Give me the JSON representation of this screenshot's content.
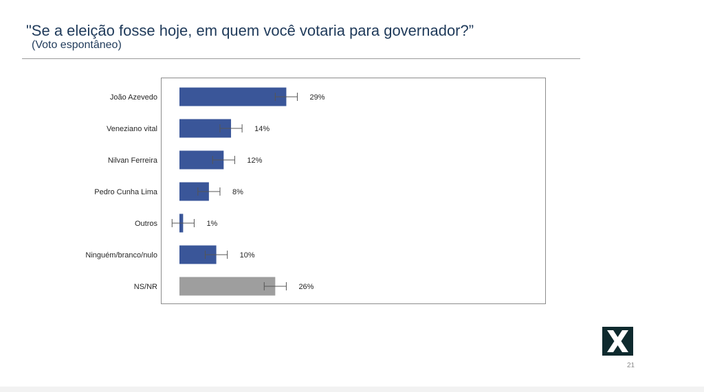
{
  "slide": {
    "title": "\"Se a eleição fosse hoje, em quem você votaria para governador?”",
    "subtitle": "(Voto espontâneo)",
    "page_number": "21"
  },
  "colors": {
    "bar_primary": "#3a5699",
    "bar_neutral": "#9e9e9e",
    "text": "#262626",
    "error_bar": "#555555",
    "title": "#1f3a5a",
    "logo_bg": "#0e2a2e"
  },
  "logo": {
    "icon": "x-logo-icon"
  },
  "chart_data": {
    "type": "bar",
    "orientation": "horizontal",
    "categories": [
      "João Azevedo",
      "Veneziano vital",
      "Nilvan Ferreira",
      "Pedro Cunha Lima",
      "Outros",
      "Ninguém/branco/nulo",
      "NS/NR"
    ],
    "values": [
      29,
      14,
      12,
      8,
      1,
      10,
      26
    ],
    "value_labels": [
      "29%",
      "14%",
      "12%",
      "8%",
      "1%",
      "10%",
      "26%"
    ],
    "bar_colors": [
      "#3a5699",
      "#3a5699",
      "#3a5699",
      "#3a5699",
      "#3a5699",
      "#3a5699",
      "#9e9e9e"
    ],
    "error_margin": 3,
    "xlim": [
      0,
      100
    ],
    "grid": false,
    "legend": "none"
  }
}
